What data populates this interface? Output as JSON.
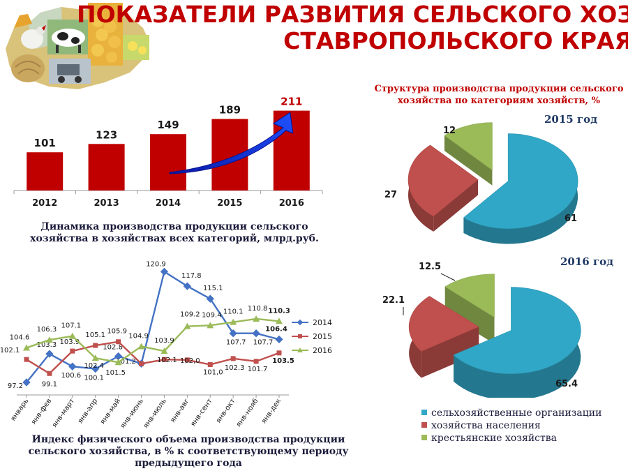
{
  "title": {
    "line1": "ПОКАЗАТЕЛИ РАЗВИТИЯ СЕЛЬСКОГО ХОЗЯЙСТВА",
    "line2": "СТАВРОПОЛЬСКОГО КРАЯ"
  },
  "colors": {
    "title": "#c00000",
    "bar": "#c00000",
    "series_2014": "#4472c4",
    "series_2015": "#c0504d",
    "series_2016": "#9bbb59",
    "pie_org": "#31a7c7",
    "pie_pop": "#c0504d",
    "pie_farm": "#9bbb59"
  },
  "chart_data": [
    {
      "type": "bar",
      "categories": [
        "2012",
        "2013",
        "2014",
        "2015",
        "2016"
      ],
      "values": [
        101,
        123,
        149,
        189,
        211
      ],
      "data_labels": [
        "101",
        "123",
        "149",
        "189",
        "211"
      ],
      "ylim": [
        0,
        225
      ],
      "caption": "Динамика производства продукции сельского хозяйства в хозяйствах всех категорий, млрд.руб.",
      "annotation": "upward-arrow"
    },
    {
      "type": "line",
      "x": [
        "январь",
        "янв-фев",
        "янв-март",
        "янв-апр",
        "янв-май",
        "янв-июнь",
        "янв-июль",
        "янв-авг",
        "янв-сент",
        "янв-окт",
        "янв-нояб",
        "янв-дек"
      ],
      "series": [
        {
          "name": "2014",
          "values": [
            97.2,
            103.3,
            100.6,
            100.1,
            102.8,
            101.2,
            120.9,
            117.8,
            115.1,
            107.7,
            107.7,
            106.4
          ],
          "labels": [
            "97.2",
            "103.3",
            "100.6",
            "100.1",
            "102.8",
            "",
            "120.9",
            "117.8",
            "115.1",
            "107.7",
            "107.7",
            "106.4"
          ]
        },
        {
          "name": "2015",
          "values": [
            102.1,
            99.1,
            103.9,
            105.1,
            105.9,
            101.2,
            102.1,
            102.0,
            101.0,
            102.3,
            101.7,
            103.5
          ],
          "labels": [
            "102.1",
            "99.1",
            "103.9",
            "105.1",
            "105.9",
            "101.2",
            "102.1",
            "102,0",
            "101,0",
            "102.3",
            "101.7",
            "103.5"
          ]
        },
        {
          "name": "2016",
          "values": [
            104.6,
            106.3,
            107.1,
            102.4,
            101.5,
            104.9,
            103.9,
            109.2,
            109.4,
            110.1,
            110.8,
            110.3
          ],
          "labels": [
            "104.6",
            "106.3",
            "107.1",
            "102.4",
            "101.5",
            "104.9",
            "103.9",
            "109.2",
            "109.4",
            "110.1",
            "110.8",
            "110.3"
          ]
        }
      ],
      "ylim": [
        96,
        122
      ],
      "legend_placement": "right",
      "caption": "Индекс физического объема производства продукции сельского хозяйства, в % к соответствующему периоду предыдущего года"
    },
    {
      "type": "pie",
      "title": "Структура производства продукции сельского хозяйства по категориям хозяйств, %",
      "year": "2015 год",
      "values": [
        61,
        27,
        12
      ],
      "labels": [
        "61",
        "27",
        "12"
      ]
    },
    {
      "type": "pie",
      "year": "2016 год",
      "values": [
        65.4,
        22.1,
        12.5
      ],
      "labels": [
        "65.4",
        "22.1",
        "12.5"
      ]
    }
  ],
  "pie_legend": [
    "сельхозяйственные организации",
    "хозяйства населения",
    "крестьянские хозяйства"
  ]
}
